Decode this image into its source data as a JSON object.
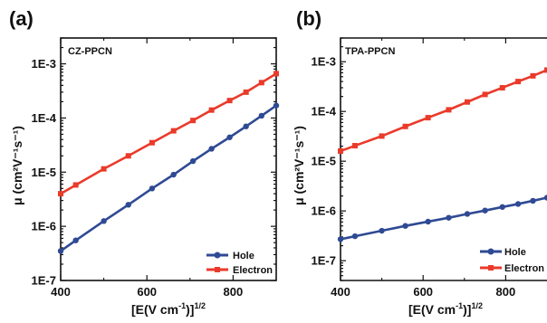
{
  "colors": {
    "hole": "#2f4a94",
    "electron": "#ea3a2a",
    "axis": "#111111"
  },
  "chart_data": [
    {
      "type": "line",
      "panel_label": "(a)",
      "title": "CZ-PPCN",
      "xlabel_main": "[E(V cm",
      "xlabel_sup1": "-1",
      "xlabel_close": ")]",
      "xlabel_sup2": "1/2",
      "ylabel": "μ (cm²V⁻¹s⁻¹)",
      "xlim": [
        400,
        900
      ],
      "ylim": [
        1e-07,
        0.003
      ],
      "yscale": "log",
      "xticks": [
        400,
        600,
        800
      ],
      "xtick_labels": [
        "400",
        "600",
        "800"
      ],
      "yticks": [
        1e-07,
        1e-06,
        1e-05,
        0.0001,
        0.001
      ],
      "ytick_labels": [
        "1E-7",
        "1E-6",
        "1E-5",
        "1E-4",
        "1E-3"
      ],
      "legend_position": "bottom-right",
      "series": [
        {
          "name": "Hole",
          "color_key": "hole",
          "x": [
            400,
            435,
            500,
            557,
            612,
            662,
            707,
            750,
            792,
            830,
            866,
            900
          ],
          "y": [
            3.5e-07,
            5.5e-07,
            1.25e-06,
            2.5e-06,
            5e-06,
            9e-06,
            1.6e-05,
            2.7e-05,
            4.4e-05,
            7e-05,
            0.00011,
            0.00017
          ]
        },
        {
          "name": "Electron",
          "color_key": "electron",
          "x": [
            400,
            435,
            500,
            557,
            612,
            662,
            707,
            750,
            792,
            830,
            866,
            900
          ],
          "y": [
            4e-06,
            5.8e-06,
            1.15e-05,
            2e-05,
            3.5e-05,
            5.8e-05,
            9e-05,
            0.00014,
            0.00021,
            0.0003,
            0.00045,
            0.00066
          ]
        }
      ]
    },
    {
      "type": "line",
      "panel_label": "(b)",
      "title": "TPA-PPCN",
      "xlabel_main": "[E(V cm",
      "xlabel_sup1": "-1",
      "xlabel_close": ")]",
      "xlabel_sup2": "1/2",
      "ylabel": "μ (cm²V⁻¹s⁻¹)",
      "xlim": [
        400,
        900
      ],
      "ylim": [
        4e-08,
        0.003
      ],
      "yscale": "log",
      "xticks": [
        400,
        600,
        800
      ],
      "xtick_labels": [
        "400",
        "600",
        "800"
      ],
      "yticks": [
        1e-07,
        1e-06,
        1e-05,
        0.0001,
        0.001
      ],
      "ytick_labels": [
        "1E-7",
        "1E-6",
        "1E-5",
        "1E-4",
        "1E-3"
      ],
      "legend_position": "bottom-right",
      "series": [
        {
          "name": "Hole",
          "color_key": "hole",
          "x": [
            400,
            435,
            500,
            557,
            612,
            662,
            707,
            750,
            792,
            830,
            866,
            900
          ],
          "y": [
            2.7e-07,
            3.1e-07,
            4e-07,
            5e-07,
            6.1e-07,
            7.3e-07,
            8.7e-07,
            1.02e-06,
            1.2e-06,
            1.38e-06,
            1.6e-06,
            1.85e-06
          ]
        },
        {
          "name": "Electron",
          "color_key": "electron",
          "x": [
            400,
            435,
            500,
            557,
            612,
            662,
            707,
            750,
            792,
            830,
            866,
            900
          ],
          "y": [
            1.6e-05,
            2.05e-05,
            3.2e-05,
            5e-05,
            7.5e-05,
            0.000108,
            0.000155,
            0.00022,
            0.0003,
            0.0004,
            0.00052,
            0.00068
          ]
        }
      ]
    }
  ]
}
